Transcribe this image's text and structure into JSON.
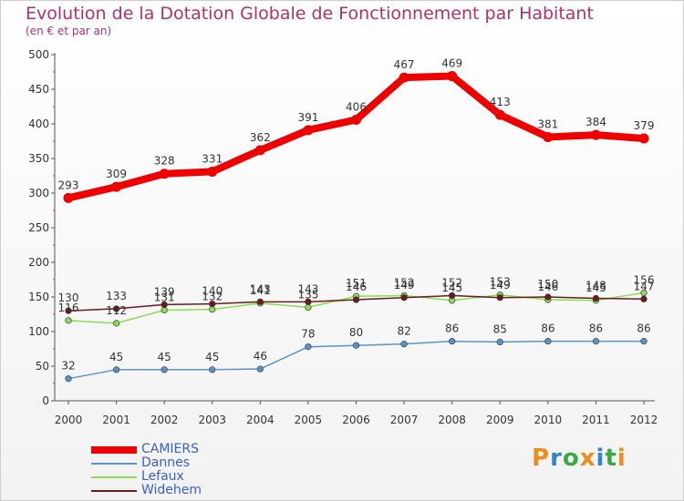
{
  "chart_data": {
    "type": "line",
    "title": "Evolution de la Dotation Globale de Fonctionnement par Habitant",
    "subtitle": "(en € et par an)",
    "xlabel": "",
    "ylabel": "",
    "categories": [
      "2000",
      "2001",
      "2002",
      "2003",
      "2004",
      "2005",
      "2006",
      "2007",
      "2008",
      "2009",
      "2010",
      "2011",
      "2012"
    ],
    "ylim": [
      0,
      500
    ],
    "yticks": [
      0,
      50,
      100,
      150,
      200,
      250,
      300,
      350,
      400,
      450,
      500
    ],
    "grid": false,
    "series": [
      {
        "name": "CAMIERS",
        "color": "#ee0000",
        "values": [
          293,
          309,
          328,
          331,
          362,
          391,
          406,
          467,
          469,
          413,
          381,
          384,
          379
        ]
      },
      {
        "name": "Dannes",
        "color": "#5b93c8",
        "values": [
          32,
          45,
          45,
          45,
          46,
          78,
          80,
          82,
          86,
          85,
          86,
          86,
          86
        ]
      },
      {
        "name": "Lefaux",
        "color": "#88dd55",
        "values": [
          116,
          112,
          131,
          132,
          141,
          135,
          151,
          152,
          145,
          153,
          146,
          145,
          156
        ]
      },
      {
        "name": "Widehem",
        "color": "#6b1b1b",
        "values": [
          130,
          133,
          139,
          140,
          143,
          143,
          146,
          149,
          152,
          149,
          150,
          148,
          147
        ]
      }
    ],
    "legend_position": "bottom-left"
  },
  "logo": {
    "text": "Proxiti"
  }
}
